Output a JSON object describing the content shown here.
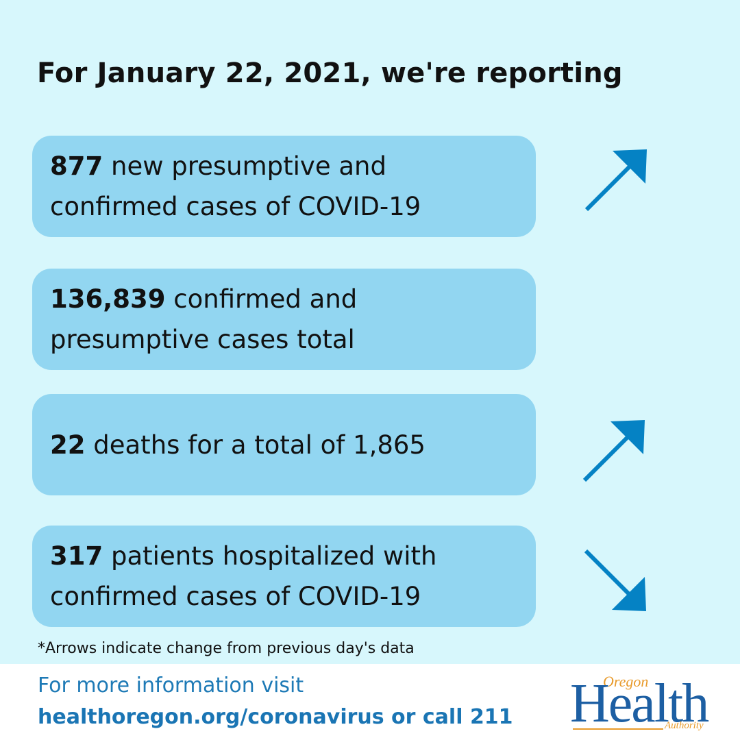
{
  "headline": "For January 22, 2021, we're reporting",
  "stats": [
    {
      "number": "877",
      "text": " new presumptive and confirmed cases of COVID-19",
      "trend": "up"
    },
    {
      "number": "136,839",
      "text": " confirmed and presumptive cases total",
      "trend": "none"
    },
    {
      "number": "22",
      "text": " deaths for a total of 1,865",
      "trend": "up"
    },
    {
      "number": "317",
      "text": " patients hospitalized with confirmed cases of COVID-19",
      "trend": "down"
    }
  ],
  "note": "*Arrows indicate change from previous day's data",
  "footer": {
    "line1": "For more information visit",
    "line2": "healthoregon.org/coronavirus or call 211"
  },
  "logo": {
    "top": "Oregon",
    "main": "Health",
    "bottom": "Authority"
  },
  "colors": {
    "background": "#d7f7fc",
    "card": "#92d6f1",
    "arrow": "#0582c4",
    "link": "#1a75b4"
  },
  "icons": {
    "up": "arrow-up-right-icon",
    "down": "arrow-down-right-icon"
  }
}
